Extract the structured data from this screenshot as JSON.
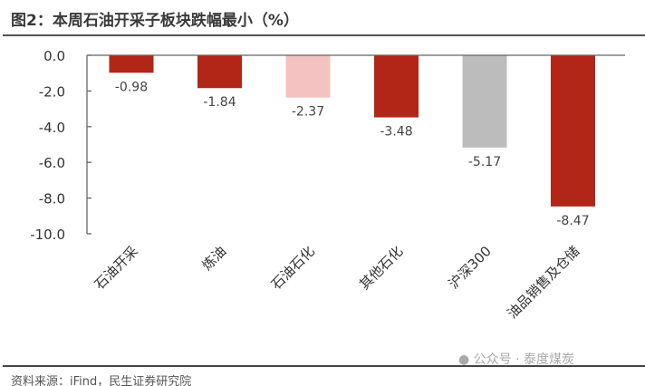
{
  "title": "图2：本周石油开采子板块跌幅最小（%）",
  "source": "资料来源：iFind，民生证券研究院",
  "watermark": "公众号 · 泰度煤炭",
  "chart_data": {
    "type": "bar",
    "categories": [
      "石油开采",
      "炼油",
      "石油石化",
      "其他石化",
      "沪深300",
      "油品销售及仓储"
    ],
    "values": [
      -0.98,
      -1.84,
      -2.37,
      -3.48,
      -5.17,
      -8.47
    ],
    "colors": [
      "#b22617",
      "#b22617",
      "#f5c2c2",
      "#b22617",
      "#bcbcbc",
      "#b22617"
    ],
    "ylim": [
      -10,
      0
    ],
    "yticks": [
      "0.0",
      "-2.0",
      "-4.0",
      "-6.0",
      "-8.0",
      "-10.0"
    ],
    "data_labels": [
      "-0.98",
      "-1.84",
      "-2.37",
      "-3.48",
      "-5.17",
      "-8.47"
    ],
    "grid": false
  }
}
